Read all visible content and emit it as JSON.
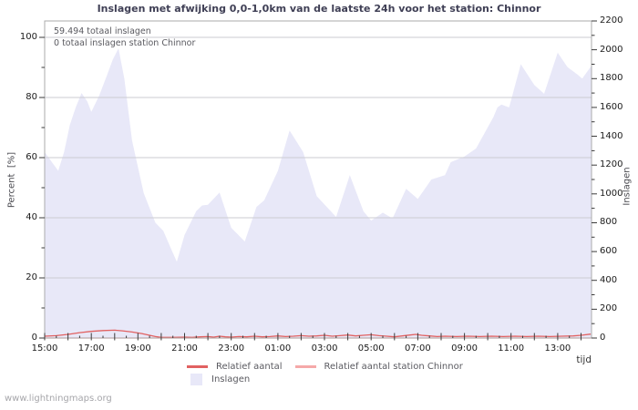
{
  "watermark": "www.lightningmaps.org",
  "colors": {
    "background": "#ffffff",
    "plot_border": "#ababab",
    "gridline": "#cbcbd2",
    "tick": "#3a3a3a",
    "title_text": "#3f3f55",
    "tick_text": "#1a1a1a",
    "annotation_text": "#5a5a60",
    "legend_text": "#5a5a60",
    "watermark_text": "#a6a6aa",
    "area_fill": "#e8e8f8",
    "line_relatief": "#e16161",
    "line_station": "#f5a9a9"
  },
  "chart_data": {
    "type": "area",
    "title": "Inslagen met afwijking 0,0-1,0km van de laatste 24h voor het station: Chinnor",
    "annotations": [
      "59.494 totaal inslagen",
      "0 totaal inslagen station Chinnor"
    ],
    "x_axis": {
      "label": "tijd",
      "start": "15:00",
      "total_minutes": 1407,
      "tick_minutes": [
        0,
        120,
        240,
        360,
        480,
        600,
        720,
        840,
        960,
        1080,
        1200,
        1320
      ],
      "tick_labels": [
        "15:00",
        "17:00",
        "19:00",
        "21:00",
        "23:00",
        "01:00",
        "03:00",
        "05:00",
        "07:00",
        "09:00",
        "11:00",
        "13:00"
      ],
      "minor_tick_step_min": 30,
      "major_tick_step_min": 60
    },
    "y_left_axis": {
      "label": "Percent  [%]",
      "min": 0,
      "max": 100,
      "tick_step": 20,
      "minor_tick_step": 10,
      "gridlines": true
    },
    "y_right_axis": {
      "label": "Inslagen",
      "min": 0,
      "max": 2200,
      "tick_step": 200,
      "minor_tick_step": 100
    },
    "legend_position": "bottom-center",
    "series": [
      {
        "name": "Inslagen",
        "type": "area",
        "axis": "right",
        "color": "#e8e8f8",
        "points": [
          [
            0,
            1290
          ],
          [
            20,
            1215
          ],
          [
            35,
            1160
          ],
          [
            50,
            1290
          ],
          [
            65,
            1480
          ],
          [
            80,
            1600
          ],
          [
            95,
            1700
          ],
          [
            110,
            1640
          ],
          [
            120,
            1570
          ],
          [
            140,
            1680
          ],
          [
            160,
            1820
          ],
          [
            175,
            1930
          ],
          [
            190,
            2010
          ],
          [
            205,
            1800
          ],
          [
            225,
            1370
          ],
          [
            255,
            1005
          ],
          [
            285,
            800
          ],
          [
            305,
            745
          ],
          [
            325,
            620
          ],
          [
            340,
            530
          ],
          [
            360,
            715
          ],
          [
            390,
            880
          ],
          [
            405,
            920
          ],
          [
            420,
            925
          ],
          [
            450,
            1010
          ],
          [
            480,
            765
          ],
          [
            515,
            670
          ],
          [
            545,
            910
          ],
          [
            565,
            955
          ],
          [
            600,
            1160
          ],
          [
            630,
            1440
          ],
          [
            665,
            1290
          ],
          [
            700,
            985
          ],
          [
            750,
            840
          ],
          [
            785,
            1130
          ],
          [
            820,
            880
          ],
          [
            840,
            815
          ],
          [
            870,
            870
          ],
          [
            895,
            830
          ],
          [
            930,
            1035
          ],
          [
            960,
            965
          ],
          [
            995,
            1100
          ],
          [
            1030,
            1130
          ],
          [
            1045,
            1220
          ],
          [
            1080,
            1260
          ],
          [
            1110,
            1315
          ],
          [
            1155,
            1535
          ],
          [
            1165,
            1600
          ],
          [
            1175,
            1620
          ],
          [
            1195,
            1600
          ],
          [
            1225,
            1900
          ],
          [
            1260,
            1755
          ],
          [
            1285,
            1695
          ],
          [
            1320,
            1980
          ],
          [
            1345,
            1880
          ],
          [
            1370,
            1830
          ],
          [
            1383,
            1800
          ],
          [
            1407,
            1890
          ]
        ]
      },
      {
        "name": "Relatief aantal",
        "type": "line",
        "axis": "left",
        "color": "#e16161",
        "points": [
          [
            0,
            0.6
          ],
          [
            30,
            0.8
          ],
          [
            60,
            1.2
          ],
          [
            90,
            1.8
          ],
          [
            120,
            2.2
          ],
          [
            150,
            2.5
          ],
          [
            180,
            2.6
          ],
          [
            200,
            2.4
          ],
          [
            225,
            2.0
          ],
          [
            250,
            1.5
          ],
          [
            270,
            0.9
          ],
          [
            285,
            0.5
          ],
          [
            300,
            0.2
          ],
          [
            330,
            0.2
          ],
          [
            360,
            0.3
          ],
          [
            380,
            0.2
          ],
          [
            400,
            0.4
          ],
          [
            420,
            0.5
          ],
          [
            435,
            0.3
          ],
          [
            450,
            0.6
          ],
          [
            465,
            0.4
          ],
          [
            480,
            0.3
          ],
          [
            500,
            0.5
          ],
          [
            520,
            0.4
          ],
          [
            540,
            0.6
          ],
          [
            560,
            0.4
          ],
          [
            580,
            0.5
          ],
          [
            600,
            0.7
          ],
          [
            620,
            0.5
          ],
          [
            640,
            0.6
          ],
          [
            660,
            0.8
          ],
          [
            680,
            0.6
          ],
          [
            700,
            0.7
          ],
          [
            720,
            0.9
          ],
          [
            740,
            0.6
          ],
          [
            760,
            0.8
          ],
          [
            780,
            1.0
          ],
          [
            800,
            0.7
          ],
          [
            820,
            0.9
          ],
          [
            840,
            1.1
          ],
          [
            860,
            0.8
          ],
          [
            880,
            0.6
          ],
          [
            900,
            0.4
          ],
          [
            920,
            0.7
          ],
          [
            940,
            1.0
          ],
          [
            955,
            1.2
          ],
          [
            970,
            0.9
          ],
          [
            990,
            0.7
          ],
          [
            1010,
            0.5
          ],
          [
            1030,
            0.6
          ],
          [
            1060,
            0.5
          ],
          [
            1090,
            0.6
          ],
          [
            1120,
            0.5
          ],
          [
            1150,
            0.6
          ],
          [
            1180,
            0.5
          ],
          [
            1210,
            0.6
          ],
          [
            1240,
            0.5
          ],
          [
            1270,
            0.6
          ],
          [
            1300,
            0.5
          ],
          [
            1330,
            0.6
          ],
          [
            1360,
            0.7
          ],
          [
            1380,
            0.9
          ],
          [
            1405,
            1.3
          ]
        ]
      },
      {
        "name": "Relatief aantal station Chinnor",
        "type": "line",
        "axis": "left",
        "color": "#f5a9a9",
        "points": [
          [
            0,
            0
          ],
          [
            1407,
            0
          ]
        ]
      }
    ]
  }
}
